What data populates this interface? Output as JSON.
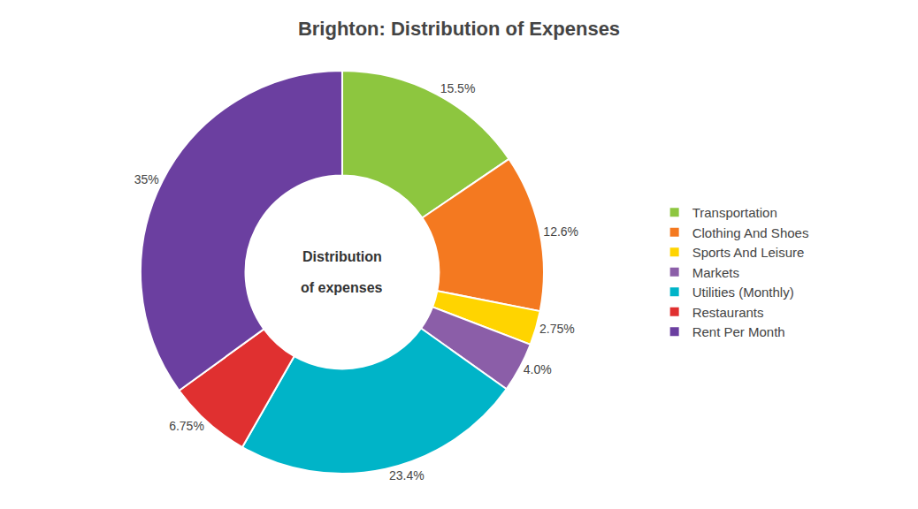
{
  "chart_data": {
    "type": "donut",
    "title": "Brighton: Distribution of Expenses",
    "categories": [
      "Transportation",
      "Clothing And Shoes",
      "Sports And Leisure",
      "Markets",
      "Utilities (Monthly)",
      "Restaurants",
      "Rent Per Month"
    ],
    "values": [
      15.5,
      12.6,
      2.75,
      4.0,
      23.4,
      6.75,
      35
    ],
    "value_labels": [
      "15.5%",
      "12.6%",
      "2.75%",
      "4.0%",
      "23.4%",
      "6.75%",
      "35%"
    ],
    "colors": [
      "#8dc63f",
      "#f47920",
      "#ffd400",
      "#8b5ea8",
      "#00b4c8",
      "#e03030",
      "#6b3fa0"
    ],
    "annotations": [
      "Distribution",
      "of expenses"
    ],
    "data_labels": true,
    "legend": "right"
  }
}
